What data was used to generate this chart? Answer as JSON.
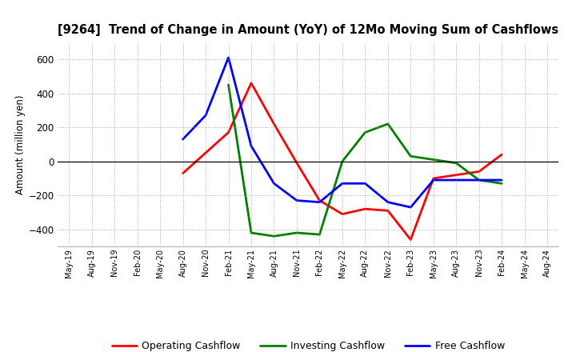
{
  "title": "[9264]  Trend of Change in Amount (YoY) of 12Mo Moving Sum of Cashflows",
  "ylabel": "Amount (million yen)",
  "x_labels": [
    "May-19",
    "Aug-19",
    "Nov-19",
    "Feb-20",
    "May-20",
    "Aug-20",
    "Nov-20",
    "Feb-21",
    "May-21",
    "Aug-21",
    "Nov-21",
    "Feb-22",
    "May-22",
    "Aug-22",
    "Nov-22",
    "Feb-23",
    "May-23",
    "Aug-23",
    "Nov-23",
    "Feb-24",
    "May-24",
    "Aug-24"
  ],
  "operating": [
    null,
    null,
    null,
    null,
    null,
    -70,
    50,
    170,
    460,
    220,
    -10,
    -230,
    -310,
    -280,
    -290,
    -460,
    -100,
    -80,
    -60,
    40,
    null,
    null
  ],
  "investing": [
    null,
    null,
    null,
    null,
    null,
    null,
    null,
    450,
    -420,
    -440,
    -420,
    -430,
    0,
    170,
    220,
    30,
    10,
    -10,
    -110,
    -130,
    null,
    null
  ],
  "free": [
    null,
    null,
    null,
    null,
    null,
    130,
    270,
    610,
    90,
    -130,
    -230,
    -240,
    -130,
    -130,
    -240,
    -270,
    -110,
    -110,
    -110,
    -110,
    null,
    null
  ],
  "operating_color": "#ff0000",
  "investing_color": "#008000",
  "free_color": "#0000ff",
  "ylim": [
    -500,
    700
  ],
  "yticks": [
    -400,
    -200,
    0,
    200,
    400,
    600
  ],
  "background_color": "#ffffff",
  "grid_color": "#999999"
}
